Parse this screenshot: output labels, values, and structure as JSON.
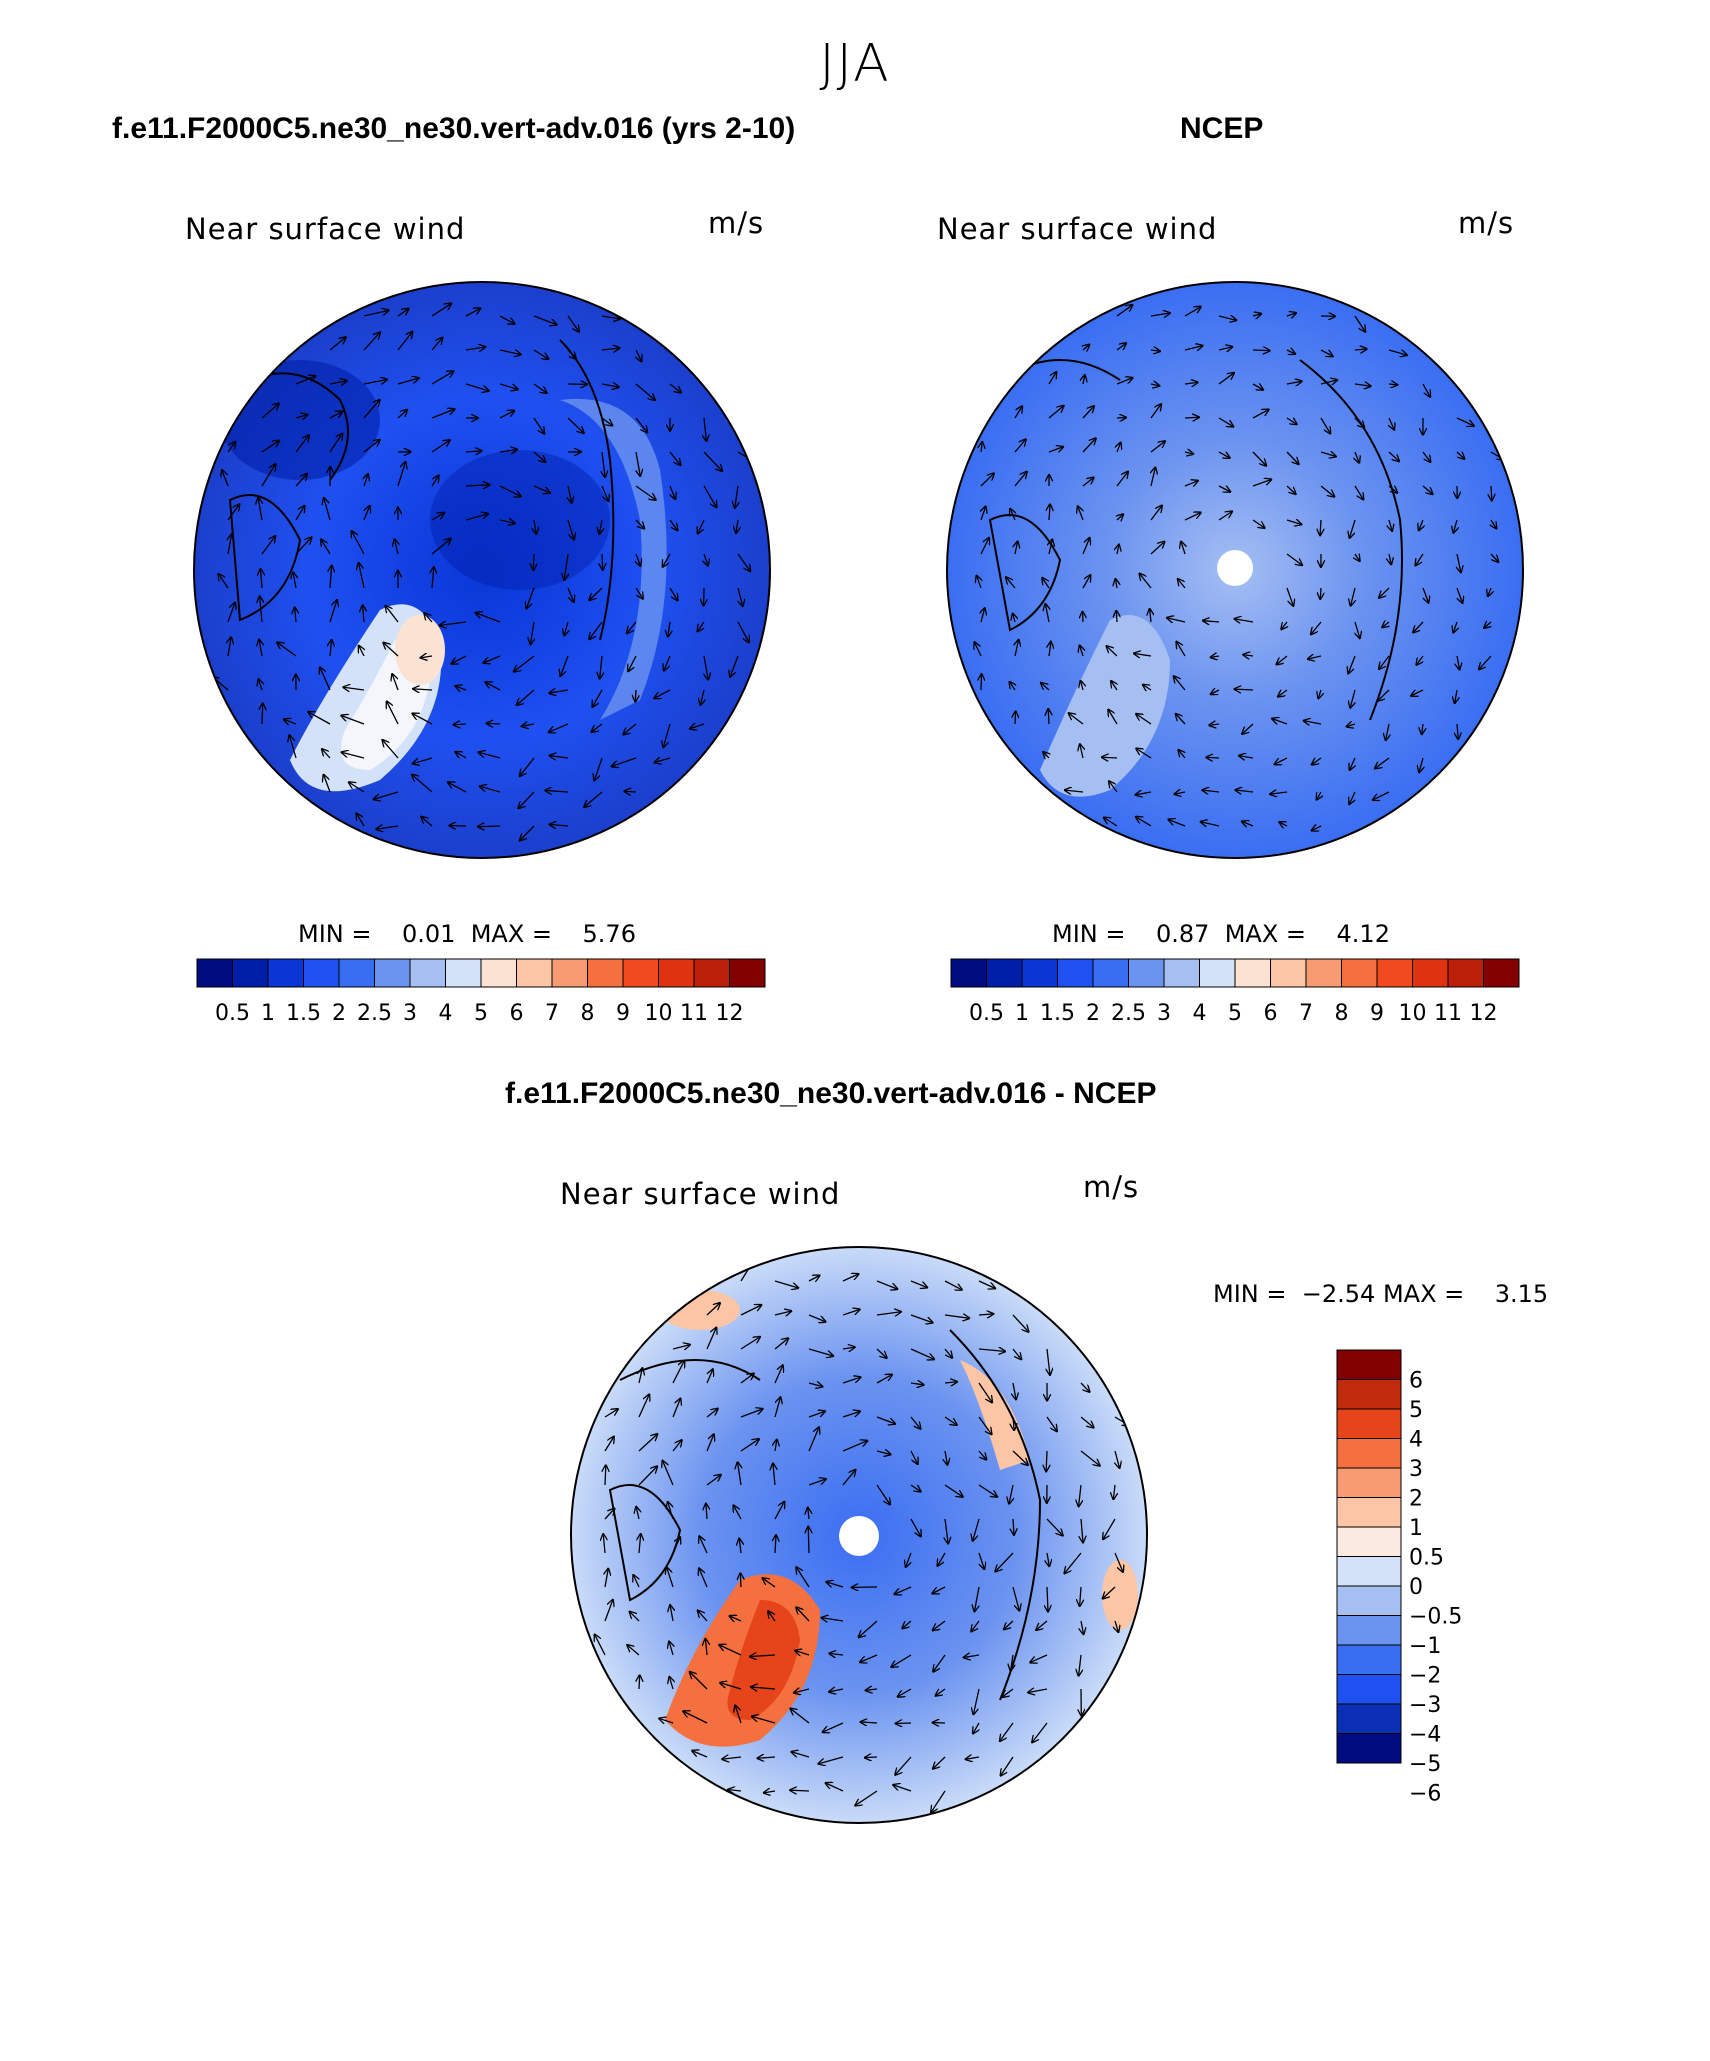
{
  "title": "JJA",
  "colors": {
    "pos_scale": [
      "#000c80",
      "#001fa8",
      "#0a36d6",
      "#1f50f0",
      "#3a6ef2",
      "#6b93f0",
      "#a6bff3",
      "#d3e2f8",
      "#fbe2d3",
      "#fbc5a6",
      "#f79b73",
      "#f5703f",
      "#f04a1e",
      "#de3210",
      "#bc1f07",
      "#830000"
    ],
    "diff_scale": [
      "#000c80",
      "#0a2fb4",
      "#1f50f0",
      "#3a6ef2",
      "#6b93f0",
      "#a6bff3",
      "#d3e2f8",
      "#fbeae0",
      "#fbc5a6",
      "#f79b73",
      "#f5703f",
      "#e6441a",
      "#c12a0b",
      "#830000"
    ]
  },
  "chart_data": [
    {
      "type": "heatmap",
      "panel": "model",
      "title": "f.e11.F2000C5.ne30_ne30.vert-adv.016 (yrs 2-10)",
      "left_label": "Near surface wind",
      "right_label": "m/s",
      "stats": {
        "min_label": "MIN =",
        "min": "0.01",
        "max_label": "MAX =",
        "max": "5.76"
      },
      "colorbar": {
        "orientation": "horizontal",
        "tick_labels": [
          "0.5",
          "1",
          "1.5",
          "2",
          "2.5",
          "3",
          "4",
          "5",
          "6",
          "7",
          "8",
          "9",
          "10",
          "11",
          "12"
        ]
      }
    },
    {
      "type": "heatmap",
      "panel": "obs",
      "title": "NCEP",
      "left_label": "Near surface wind",
      "right_label": "m/s",
      "stats": {
        "min_label": "MIN =",
        "min": "0.87",
        "max_label": "MAX =",
        "max": "4.12"
      },
      "colorbar": {
        "orientation": "horizontal",
        "tick_labels": [
          "0.5",
          "1",
          "1.5",
          "2",
          "2.5",
          "3",
          "4",
          "5",
          "6",
          "7",
          "8",
          "9",
          "10",
          "11",
          "12"
        ]
      }
    },
    {
      "type": "heatmap",
      "panel": "difference",
      "title": "f.e11.F2000C5.ne30_ne30.vert-adv.016 - NCEP",
      "left_label": "Near surface wind",
      "right_label": "m/s",
      "stats": {
        "min_label": "MIN =",
        "min": "−2.54",
        "max_label": "MAX =",
        "max": "3.15"
      },
      "colorbar": {
        "orientation": "vertical",
        "tick_labels": [
          "6",
          "5",
          "4",
          "3",
          "2",
          "1",
          "0.5",
          "0",
          "−0.5",
          "−1",
          "−2",
          "−3",
          "−4",
          "−5",
          "−6"
        ]
      }
    }
  ]
}
